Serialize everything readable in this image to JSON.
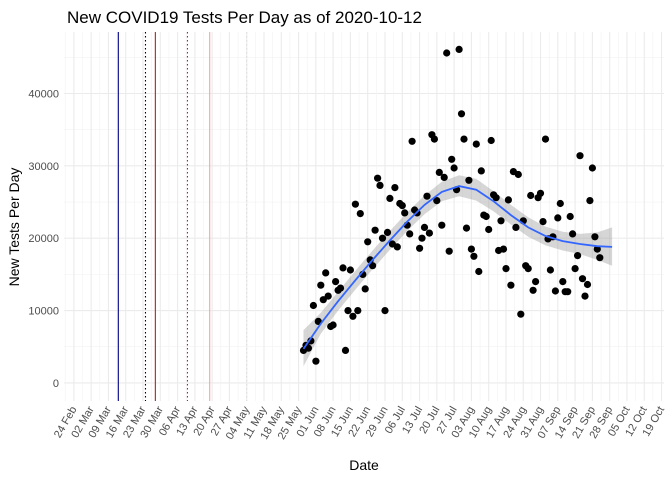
{
  "chart_data": {
    "type": "scatter",
    "title": "New COVID19 Tests Per Day as of 2020-10-12",
    "xlabel": "Date",
    "ylabel": "New Tests Per Day",
    "x_axis": {
      "type": "date",
      "range": [
        "2020-02-20",
        "2020-10-20"
      ],
      "ticks": [
        "2020-02-24",
        "2020-03-02",
        "2020-03-09",
        "2020-03-16",
        "2020-03-23",
        "2020-03-30",
        "2020-04-06",
        "2020-04-13",
        "2020-04-20",
        "2020-04-27",
        "2020-05-04",
        "2020-05-11",
        "2020-05-18",
        "2020-05-25",
        "2020-06-01",
        "2020-06-08",
        "2020-06-15",
        "2020-06-22",
        "2020-06-29",
        "2020-07-06",
        "2020-07-13",
        "2020-07-20",
        "2020-07-27",
        "2020-08-03",
        "2020-08-10",
        "2020-08-17",
        "2020-08-24",
        "2020-08-31",
        "2020-09-07",
        "2020-09-14",
        "2020-09-21",
        "2020-09-28",
        "2020-10-05",
        "2020-10-12",
        "2020-10-19"
      ],
      "tick_labels": [
        "24 Feb",
        "02 Mar",
        "09 Mar",
        "16 Mar",
        "23 Mar",
        "30 Mar",
        "06 Apr",
        "13 Apr",
        "20 Apr",
        "27 Apr",
        "04 May",
        "11 May",
        "18 May",
        "25 May",
        "01 Jun",
        "08 Jun",
        "15 Jun",
        "22 Jun",
        "29 Jun",
        "06 Jul",
        "13 Jul",
        "20 Jul",
        "27 Jul",
        "03 Aug",
        "10 Aug",
        "17 Aug",
        "24 Aug",
        "31 Aug",
        "07 Sep",
        "14 Sep",
        "21 Sep",
        "28 Sep",
        "05 Oct",
        "12 Oct",
        "19 Oct"
      ]
    },
    "y_axis": {
      "range": [
        -2500,
        48500
      ],
      "ticks": [
        0,
        10000,
        20000,
        30000,
        40000
      ],
      "tick_labels": [
        "0",
        "10000",
        "20000",
        "30000",
        "40000"
      ]
    },
    "grid": true,
    "reference_lines": [
      {
        "date": "2020-03-13",
        "color": "#00008b",
        "style": "solid"
      },
      {
        "date": "2020-03-24",
        "color": "#000000",
        "style": "dotted"
      },
      {
        "date": "2020-03-28",
        "color": "#b22222",
        "style": "solid"
      },
      {
        "date": "2020-04-10",
        "color": "#b22222",
        "style": "dotted"
      },
      {
        "date": "2020-04-19",
        "color": "#f4a6a6",
        "style": "solid"
      },
      {
        "date": "2020-05-04",
        "color": "#dddddd",
        "style": "dotted"
      }
    ],
    "point_color": "#000000",
    "smooth_color": "#3366ff",
    "band_color": "#999999",
    "series": [
      {
        "points": [
          [
            "2020-05-27",
            4500
          ],
          [
            "2020-05-28",
            5200
          ],
          [
            "2020-05-29",
            4800
          ],
          [
            "2020-05-30",
            5800
          ],
          [
            "2020-05-31",
            10700
          ],
          [
            "2020-06-01",
            3000
          ],
          [
            "2020-06-02",
            8500
          ],
          [
            "2020-06-03",
            13500
          ],
          [
            "2020-06-04",
            11500
          ],
          [
            "2020-06-05",
            15200
          ],
          [
            "2020-06-06",
            12000
          ],
          [
            "2020-06-07",
            7800
          ],
          [
            "2020-06-08",
            8000
          ],
          [
            "2020-06-09",
            14000
          ],
          [
            "2020-06-10",
            12800
          ],
          [
            "2020-06-11",
            13100
          ],
          [
            "2020-06-12",
            15900
          ],
          [
            "2020-06-13",
            4500
          ],
          [
            "2020-06-14",
            10000
          ],
          [
            "2020-06-15",
            15600
          ],
          [
            "2020-06-16",
            9200
          ],
          [
            "2020-06-17",
            24700
          ],
          [
            "2020-06-18",
            10000
          ],
          [
            "2020-06-19",
            23400
          ],
          [
            "2020-06-20",
            15000
          ],
          [
            "2020-06-21",
            13000
          ],
          [
            "2020-06-22",
            19500
          ],
          [
            "2020-06-23",
            17000
          ],
          [
            "2020-06-24",
            16200
          ],
          [
            "2020-06-25",
            21100
          ],
          [
            "2020-06-26",
            28300
          ],
          [
            "2020-06-27",
            27300
          ],
          [
            "2020-06-28",
            20000
          ],
          [
            "2020-06-29",
            10000
          ],
          [
            "2020-06-30",
            20800
          ],
          [
            "2020-07-01",
            25500
          ],
          [
            "2020-07-02",
            19200
          ],
          [
            "2020-07-03",
            27000
          ],
          [
            "2020-07-04",
            18800
          ],
          [
            "2020-07-05",
            24800
          ],
          [
            "2020-07-06",
            24500
          ],
          [
            "2020-07-07",
            23500
          ],
          [
            "2020-07-08",
            21800
          ],
          [
            "2020-07-09",
            20600
          ],
          [
            "2020-07-10",
            33400
          ],
          [
            "2020-07-11",
            23900
          ],
          [
            "2020-07-12",
            23500
          ],
          [
            "2020-07-13",
            18600
          ],
          [
            "2020-07-14",
            20000
          ],
          [
            "2020-07-15",
            21500
          ],
          [
            "2020-07-16",
            25800
          ],
          [
            "2020-07-17",
            20700
          ],
          [
            "2020-07-18",
            34300
          ],
          [
            "2020-07-19",
            33700
          ],
          [
            "2020-07-20",
            25200
          ],
          [
            "2020-07-21",
            29100
          ],
          [
            "2020-07-22",
            21800
          ],
          [
            "2020-07-23",
            28400
          ],
          [
            "2020-07-24",
            45600
          ],
          [
            "2020-07-25",
            18200
          ],
          [
            "2020-07-26",
            30900
          ],
          [
            "2020-07-27",
            29700
          ],
          [
            "2020-07-28",
            26700
          ],
          [
            "2020-07-29",
            46100
          ],
          [
            "2020-07-30",
            37200
          ],
          [
            "2020-07-31",
            33700
          ],
          [
            "2020-08-01",
            21400
          ],
          [
            "2020-08-02",
            28000
          ],
          [
            "2020-08-03",
            18500
          ],
          [
            "2020-08-04",
            17500
          ],
          [
            "2020-08-05",
            33000
          ],
          [
            "2020-08-06",
            15400
          ],
          [
            "2020-08-07",
            29300
          ],
          [
            "2020-08-08",
            23200
          ],
          [
            "2020-08-09",
            23000
          ],
          [
            "2020-08-10",
            21200
          ],
          [
            "2020-08-11",
            33500
          ],
          [
            "2020-08-12",
            26000
          ],
          [
            "2020-08-13",
            25600
          ],
          [
            "2020-08-14",
            18300
          ],
          [
            "2020-08-15",
            22400
          ],
          [
            "2020-08-16",
            18500
          ],
          [
            "2020-08-17",
            15800
          ],
          [
            "2020-08-18",
            25300
          ],
          [
            "2020-08-19",
            13500
          ],
          [
            "2020-08-20",
            29200
          ],
          [
            "2020-08-21",
            21500
          ],
          [
            "2020-08-22",
            28800
          ],
          [
            "2020-08-23",
            9500
          ],
          [
            "2020-08-24",
            22400
          ],
          [
            "2020-08-25",
            16200
          ],
          [
            "2020-08-26",
            15800
          ],
          [
            "2020-08-27",
            25900
          ],
          [
            "2020-08-28",
            12800
          ],
          [
            "2020-08-29",
            14000
          ],
          [
            "2020-08-30",
            25600
          ],
          [
            "2020-08-31",
            26200
          ],
          [
            "2020-09-01",
            22300
          ],
          [
            "2020-09-02",
            33700
          ],
          [
            "2020-09-03",
            19900
          ],
          [
            "2020-09-04",
            15600
          ],
          [
            "2020-09-05",
            20200
          ],
          [
            "2020-09-06",
            12700
          ],
          [
            "2020-09-07",
            22800
          ],
          [
            "2020-09-08",
            24800
          ],
          [
            "2020-09-09",
            14000
          ],
          [
            "2020-09-10",
            12600
          ],
          [
            "2020-09-11",
            12600
          ],
          [
            "2020-09-12",
            23000
          ],
          [
            "2020-09-13",
            20600
          ],
          [
            "2020-09-14",
            15800
          ],
          [
            "2020-09-15",
            17600
          ],
          [
            "2020-09-16",
            31400
          ],
          [
            "2020-09-17",
            14400
          ],
          [
            "2020-09-18",
            12000
          ],
          [
            "2020-09-19",
            13600
          ],
          [
            "2020-09-20",
            25200
          ],
          [
            "2020-09-21",
            29700
          ],
          [
            "2020-09-22",
            20200
          ],
          [
            "2020-09-23",
            18500
          ],
          [
            "2020-09-24",
            17300
          ]
        ],
        "smooth": [
          [
            "2020-05-27",
            4700
          ],
          [
            "2020-06-03",
            8200
          ],
          [
            "2020-06-10",
            11300
          ],
          [
            "2020-06-17",
            14200
          ],
          [
            "2020-06-24",
            17000
          ],
          [
            "2020-07-01",
            19700
          ],
          [
            "2020-07-08",
            22300
          ],
          [
            "2020-07-15",
            24600
          ],
          [
            "2020-07-22",
            26400
          ],
          [
            "2020-07-29",
            27200
          ],
          [
            "2020-08-05",
            26700
          ],
          [
            "2020-08-12",
            25100
          ],
          [
            "2020-08-19",
            23200
          ],
          [
            "2020-08-26",
            21500
          ],
          [
            "2020-09-02",
            20300
          ],
          [
            "2020-09-09",
            19600
          ],
          [
            "2020-09-16",
            19200
          ],
          [
            "2020-09-23",
            18900
          ],
          [
            "2020-09-29",
            18800
          ]
        ],
        "band": [
          [
            "2020-05-27",
            2300,
            7300
          ],
          [
            "2020-06-03",
            6800,
            9700
          ],
          [
            "2020-06-10",
            10000,
            12600
          ],
          [
            "2020-06-17",
            12900,
            15500
          ],
          [
            "2020-06-24",
            15700,
            18300
          ],
          [
            "2020-07-01",
            18400,
            21000
          ],
          [
            "2020-07-08",
            21000,
            23600
          ],
          [
            "2020-07-15",
            23300,
            25900
          ],
          [
            "2020-07-22",
            25100,
            27800
          ],
          [
            "2020-07-29",
            25800,
            28700
          ],
          [
            "2020-08-05",
            25200,
            28200
          ],
          [
            "2020-08-12",
            23700,
            26500
          ],
          [
            "2020-08-19",
            21900,
            24600
          ],
          [
            "2020-08-26",
            20200,
            22900
          ],
          [
            "2020-09-02",
            19000,
            21600
          ],
          [
            "2020-09-09",
            18300,
            20900
          ],
          [
            "2020-09-16",
            17800,
            20600
          ],
          [
            "2020-09-23",
            17000,
            20800
          ],
          [
            "2020-09-29",
            16200,
            21500
          ]
        ]
      }
    ]
  }
}
